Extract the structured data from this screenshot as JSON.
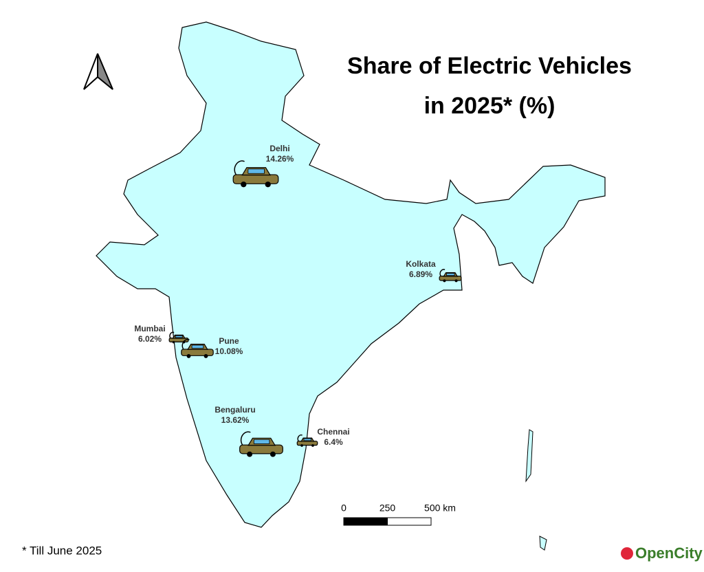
{
  "title": [
    "Share of Electric Vehicles",
    "in 2025* (%)"
  ],
  "cities": [
    {
      "name": "Delhi",
      "value": 14.26,
      "value_label": "14.26%"
    },
    {
      "name": "Kolkata",
      "value": 6.89,
      "value_label": "6.89%"
    },
    {
      "name": "Mumbai",
      "value": 6.02,
      "value_label": "6.02%"
    },
    {
      "name": "Pune",
      "value": 10.08,
      "value_label": "10.08%"
    },
    {
      "name": "Bengaluru",
      "value": 13.62,
      "value_label": "13.62%"
    },
    {
      "name": "Chennai",
      "value": 6.4,
      "value_label": "6.4%"
    }
  ],
  "scale_bar": {
    "ticks": [
      0,
      250,
      {
        "value": 500,
        "label": "500 km"
      }
    ]
  },
  "footnote": "* Till June 2025",
  "logo": "OpenCity"
}
